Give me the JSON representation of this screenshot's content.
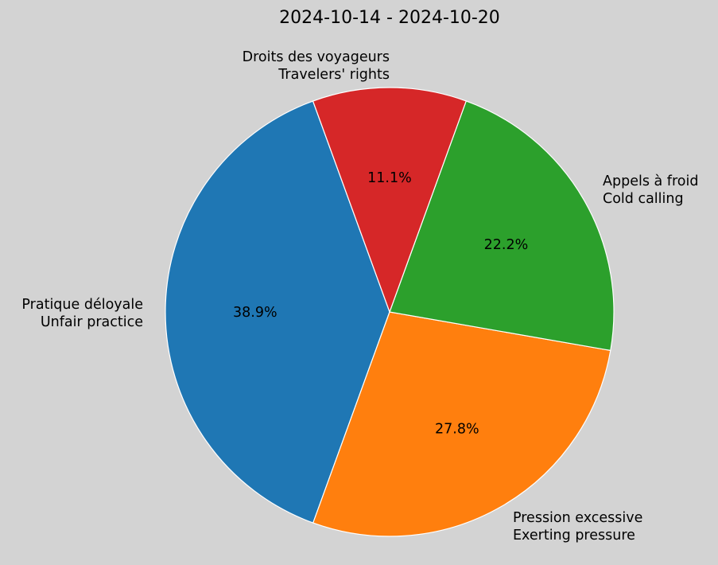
{
  "chart_data": {
    "type": "pie",
    "title": "2024-10-14 - 2024-10-20",
    "categories": [
      "Pratique déloyale\nUnfair practice",
      "Pression excessive\nExerting pressure",
      "Appels à froid\nCold calling",
      "Droits des voyageurs\nTravelers' rights"
    ],
    "values": [
      38.9,
      27.8,
      22.2,
      11.1
    ],
    "percent_labels": [
      "38.9%",
      "27.8%",
      "22.2%",
      "11.1%"
    ],
    "colors": [
      "#1f77b4",
      "#ff7f0e",
      "#2ca02c",
      "#d62728"
    ],
    "start_angle": 110,
    "counterclock": true
  },
  "labels": [
    {
      "line1": "Pratique déloyale",
      "line2": "Unfair practice"
    },
    {
      "line1": "Pression excessive",
      "line2": "Exerting pressure"
    },
    {
      "line1": "Appels à froid",
      "line2": "Cold calling"
    },
    {
      "line1": "Droits des voyageurs",
      "line2": "Travelers' rights"
    }
  ],
  "background": "#d3d3d3"
}
